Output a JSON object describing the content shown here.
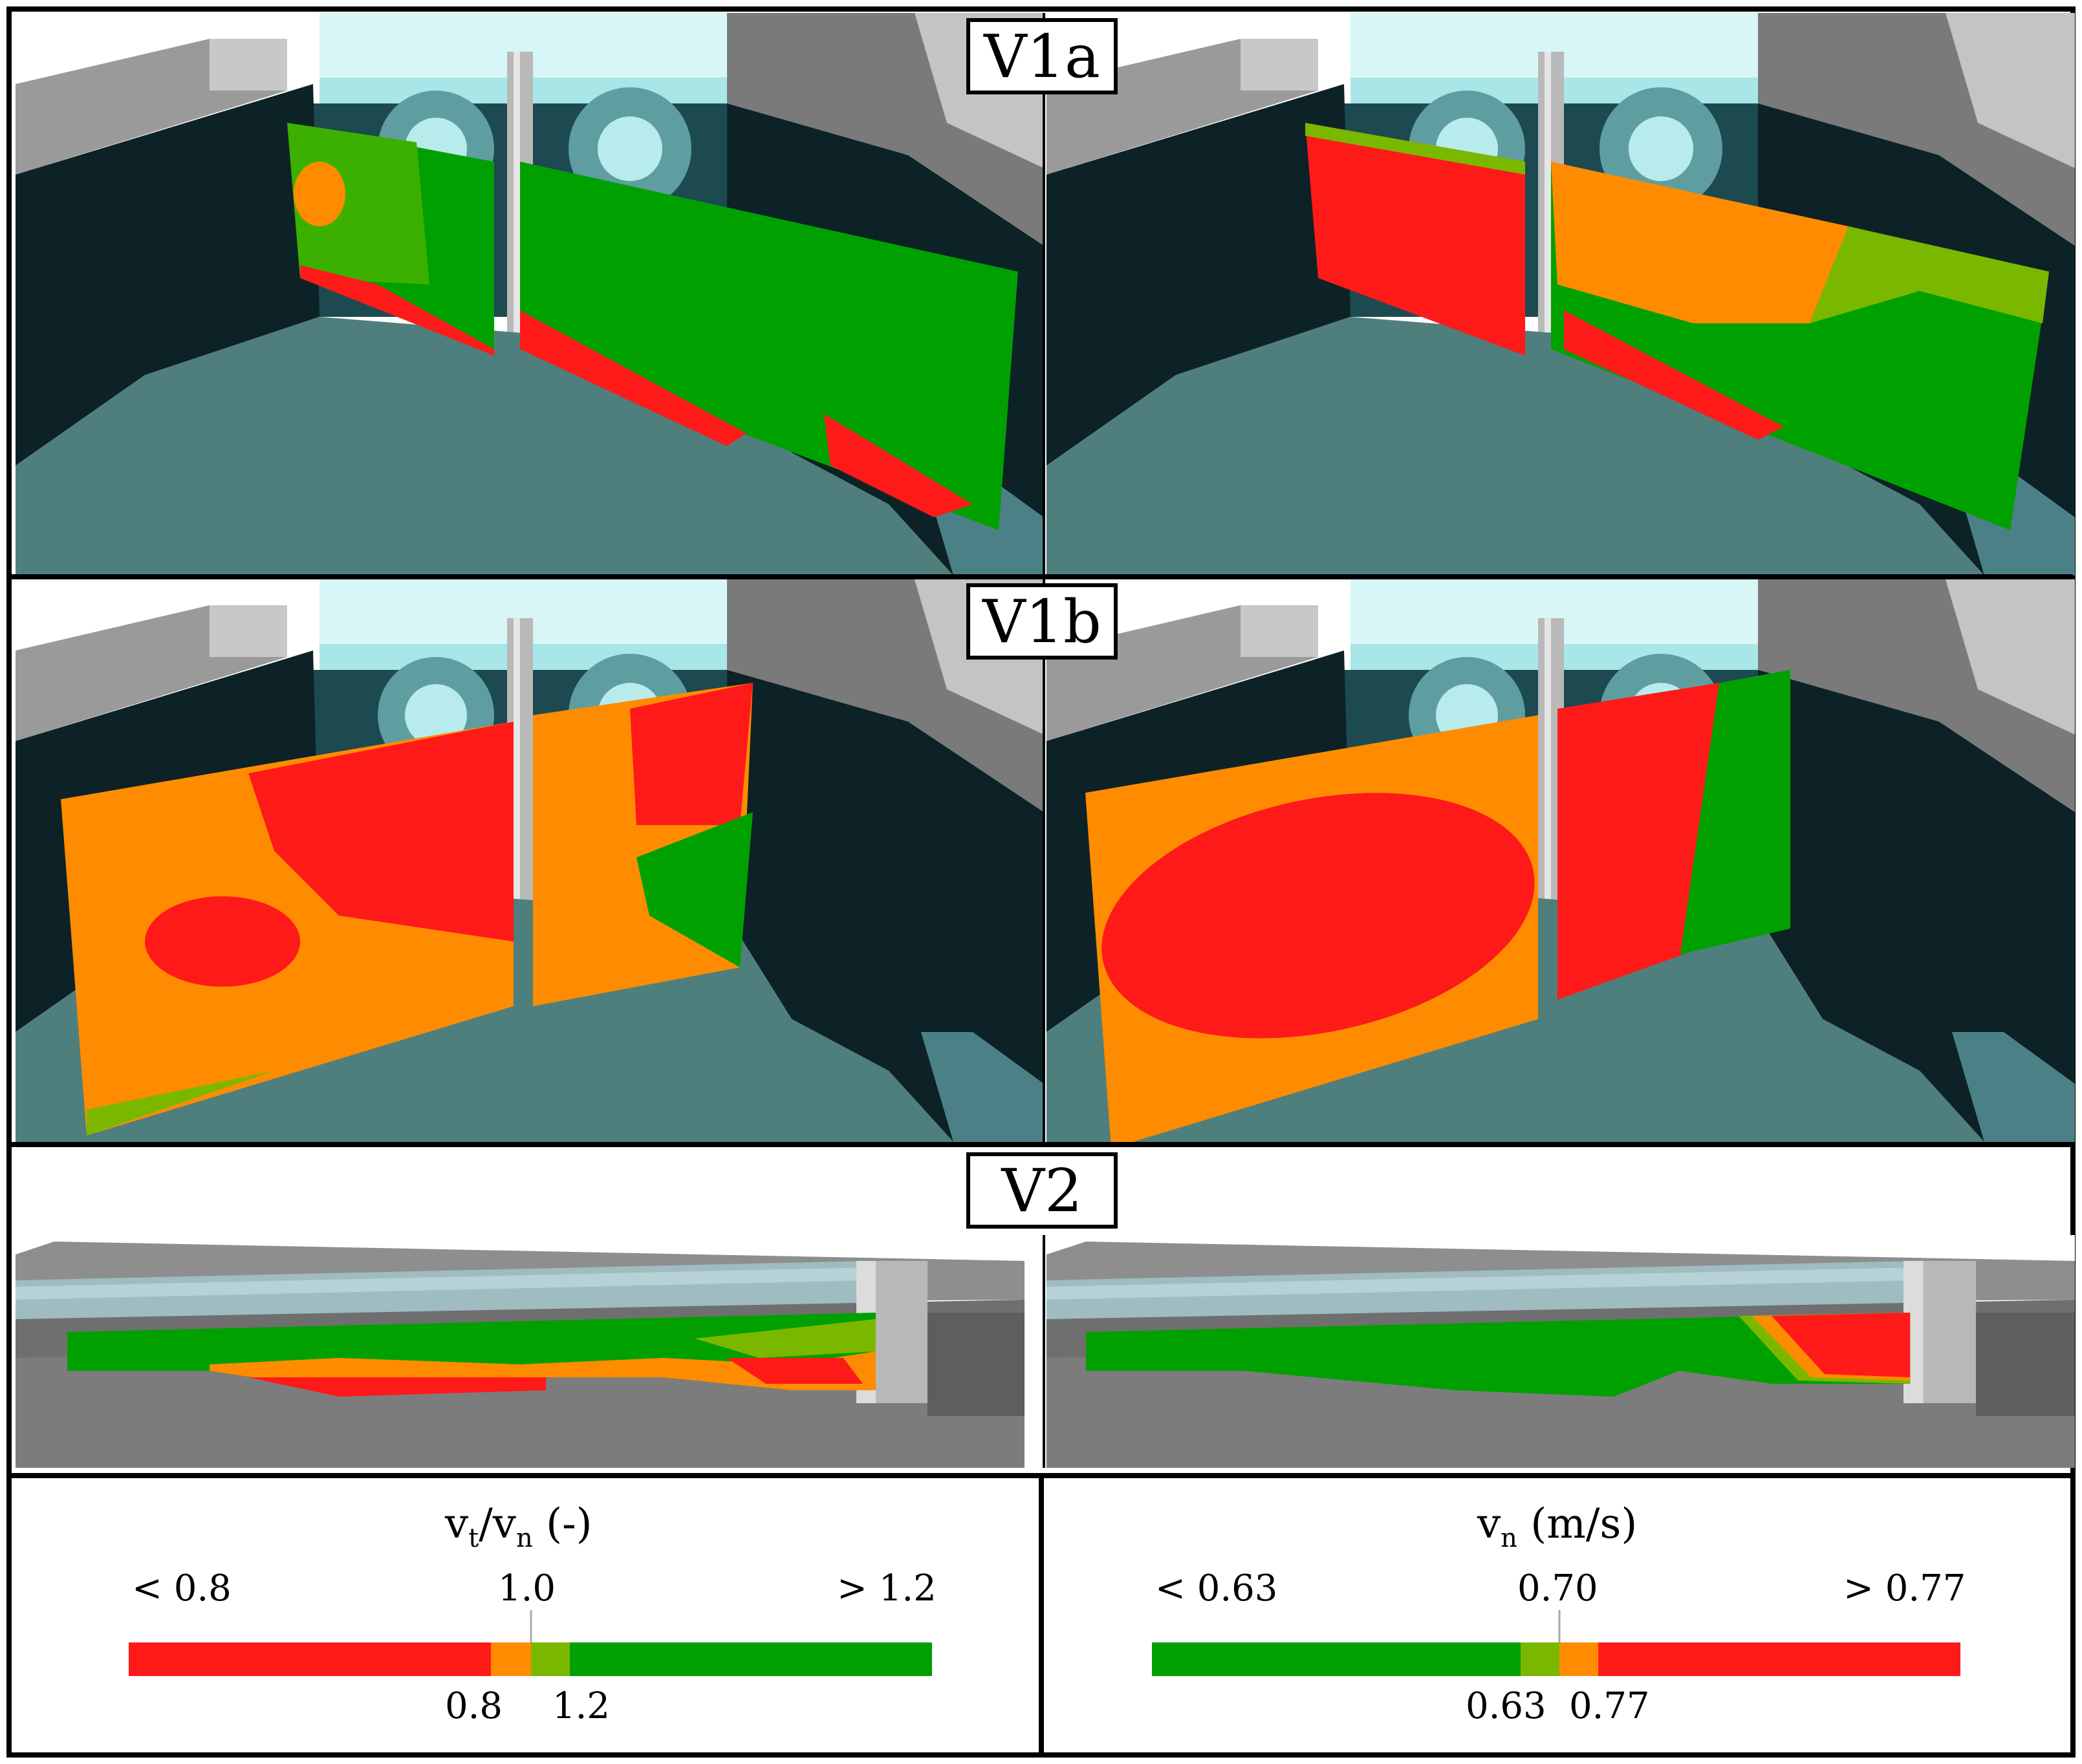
{
  "rows": [
    {
      "label": "V1a"
    },
    {
      "label": "V1b"
    },
    {
      "label": "V2"
    }
  ],
  "legends": [
    {
      "title_main": "v",
      "title_sub1": "t",
      "title_sep": "/v",
      "title_sub2": "n",
      "title_unit": " (-)",
      "top_left": "< 0.8",
      "top_mid": "1.0",
      "top_right": "> 1.2",
      "bottom_left": "0.8",
      "bottom_right": "1.2",
      "colors": [
        "#ff1a1a",
        "#ff8c00",
        "#7ab800",
        "#00a000"
      ]
    },
    {
      "title_main": "v",
      "title_sub1": "n",
      "title_unit": " (m/s)",
      "top_left": "< 0.63",
      "top_mid": "0.70",
      "top_right": "> 0.77",
      "bottom_left": "0.63",
      "bottom_right": "0.77",
      "colors": [
        "#00a000",
        "#7ab800",
        "#ff8c00",
        "#ff1a1a"
      ]
    }
  ],
  "colors": {
    "red": "#ff1a1a",
    "orange": "#ff8c00",
    "light_green": "#7ab800",
    "green": "#00a000",
    "floor": "#4f7f7d",
    "wall_dark": "#0c2226",
    "concrete": "#a9a9a9"
  }
}
